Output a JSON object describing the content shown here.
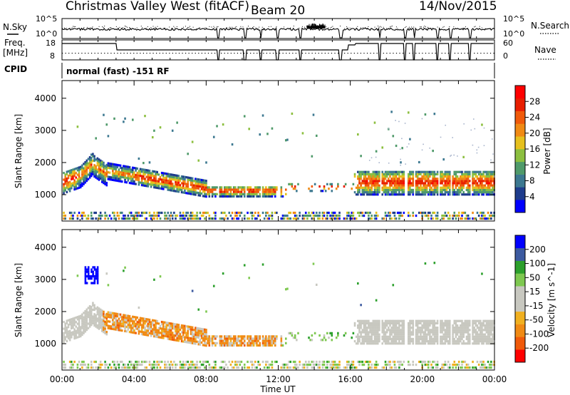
{
  "header": {
    "station": "Christmas Valley West (fitACF)",
    "beam": "Beam 20",
    "date": "14/Nov/2015"
  },
  "panel_labels": {
    "nsky": "N.Sky",
    "nsearch": "N.Search",
    "freq": "Freq.",
    "freq_unit": "[MHz]",
    "nave": "Nave",
    "cpid": "CPID",
    "cpid_value": "normal (fast) -151 RF",
    "nsky_ticks": [
      "10^5",
      "10^0"
    ],
    "nsearch_ticks": [
      "10^5",
      "10^0"
    ],
    "freq_ticks": [
      "18",
      "8"
    ],
    "nave_ticks": [
      "60",
      "0"
    ]
  },
  "colors": {
    "power_scale": [
      "#0000ff",
      "#1e3c8c",
      "#3c7890",
      "#4f9a6a",
      "#8cbf3f",
      "#e6c01e",
      "#f08a14",
      "#f05a0a",
      "#e81e00",
      "#ff0000"
    ],
    "velocity_scale": [
      "#ff0000",
      "#f05a0a",
      "#f08a14",
      "#f0b020",
      "#c8c8c0",
      "#c8c8c0",
      "#7ec850",
      "#2ca02c",
      "#3c5aa0",
      "#0000ff"
    ],
    "power_dots_color": "#a8b4cc"
  },
  "chart_data": [
    {
      "type": "heatmap",
      "name": "power",
      "ylabel": "Slant Range [km]",
      "xlabel": "Time UT",
      "x_ticks": [
        "00:00",
        "04:00",
        "08:00",
        "12:00",
        "16:00",
        "20:00",
        "00:00"
      ],
      "x_range_hours": [
        0,
        24
      ],
      "y_ticks": [
        "1000",
        "2000",
        "3000",
        "4000"
      ],
      "y_range_km": [
        180,
        4550
      ],
      "colorbar": {
        "label": "Power [dB]",
        "ticks": [
          "4",
          "8",
          "12",
          "16",
          "20",
          "24",
          "28"
        ],
        "range": [
          0,
          30
        ]
      },
      "features": [
        {
          "t": [
            0.0,
            4.0
          ],
          "range_km": [
            1150,
            2000
          ],
          "value_db": 18
        },
        {
          "t": [
            1.2,
            2.4
          ],
          "range_km": [
            1800,
            3300
          ],
          "value_db": 12
        },
        {
          "t": [
            4.0,
            8.0
          ],
          "range_km": [
            900,
            1400
          ],
          "value_db": 24
        },
        {
          "t": [
            8.5,
            12.0
          ],
          "range_km": [
            900,
            1300
          ],
          "value_db": 26
        },
        {
          "t": [
            16.3,
            24.0
          ],
          "range_km": [
            950,
            1750
          ],
          "value_db": 28
        }
      ]
    },
    {
      "type": "heatmap",
      "name": "velocity",
      "ylabel": "Slant Range [km]",
      "xlabel": "Time UT",
      "x_ticks": [
        "00:00",
        "04:00",
        "08:00",
        "12:00",
        "16:00",
        "20:00",
        "00:00"
      ],
      "x_range_hours": [
        0,
        24
      ],
      "y_ticks": [
        "1000",
        "2000",
        "3000",
        "4000"
      ],
      "y_range_km": [
        180,
        4550
      ],
      "colorbar": {
        "label": "Velocity [m s^-1]",
        "ticks": [
          "200",
          "100",
          "50",
          "15",
          "-15",
          "-50",
          "-100",
          "-200"
        ],
        "range": [
          -250,
          250
        ]
      },
      "features": [
        {
          "t": [
            0.0,
            2.5
          ],
          "range_km": [
            1000,
            2000
          ],
          "value_ms": 0
        },
        {
          "t": [
            2.5,
            8.0
          ],
          "range_km": [
            900,
            1500
          ],
          "value_ms": -50
        },
        {
          "t": [
            8.5,
            12.0
          ],
          "range_km": [
            900,
            1300
          ],
          "value_ms": -40
        },
        {
          "t": [
            1.2,
            2.0
          ],
          "range_km": [
            2800,
            3400
          ],
          "value_ms": 200
        },
        {
          "t": [
            16.0,
            24.0
          ],
          "range_km": [
            900,
            1800
          ],
          "value_ms": 0
        }
      ]
    }
  ]
}
